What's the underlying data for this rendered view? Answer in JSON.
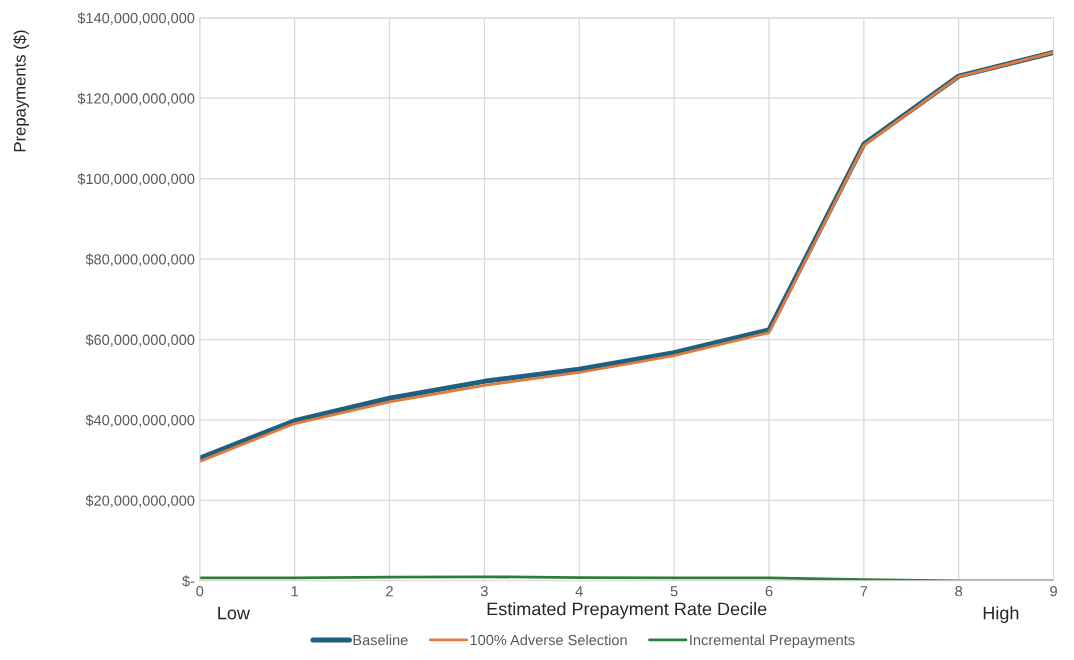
{
  "chart_data": {
    "type": "line",
    "ylabel": "Prepayments ($)",
    "xlabel": "Estimated Prepayment Rate Decile",
    "x": [
      0,
      1,
      2,
      3,
      4,
      5,
      6,
      7,
      8,
      9
    ],
    "xlim": [
      0,
      9
    ],
    "xticks": [
      0,
      1,
      2,
      3,
      4,
      5,
      6,
      7,
      8,
      9
    ],
    "ylim": [
      0,
      140000000000
    ],
    "yticks": [
      {
        "value": 0,
        "label": "$-"
      },
      {
        "value": 20000000000,
        "label": "$20,000,000,000"
      },
      {
        "value": 40000000000,
        "label": "$40,000,000,000"
      },
      {
        "value": 60000000000,
        "label": "$60,000,000,000"
      },
      {
        "value": 80000000000,
        "label": "$80,000,000,000"
      },
      {
        "value": 100000000000,
        "label": "$100,000,000,000"
      },
      {
        "value": 120000000000,
        "label": "$120,000,000,000"
      },
      {
        "value": 140000000000,
        "label": "$140,000,000,000"
      }
    ],
    "series": [
      {
        "name": "Baseline",
        "color": "#1f5f7f",
        "values": [
          30500000000,
          39800000000,
          45400000000,
          49600000000,
          52600000000,
          56700000000,
          62400000000,
          108600000000,
          125500000000,
          131400000000
        ]
      },
      {
        "name": "100% Adverse Selection",
        "color": "#e07b3c",
        "values": [
          29700000000,
          39100000000,
          44500000000,
          48600000000,
          51800000000,
          56000000000,
          61700000000,
          108300000000,
          125400000000,
          131400000000
        ]
      },
      {
        "name": "Incremental Prepayments",
        "color": "#2e7d3a",
        "values": [
          700000000,
          700000000,
          900000000,
          1000000000,
          800000000,
          700000000,
          700000000,
          300000000,
          0,
          0
        ]
      }
    ],
    "annotations": [
      "Low",
      "High"
    ],
    "grid": true,
    "legend": "bottom",
    "marker": "none",
    "line_style": "solid"
  }
}
